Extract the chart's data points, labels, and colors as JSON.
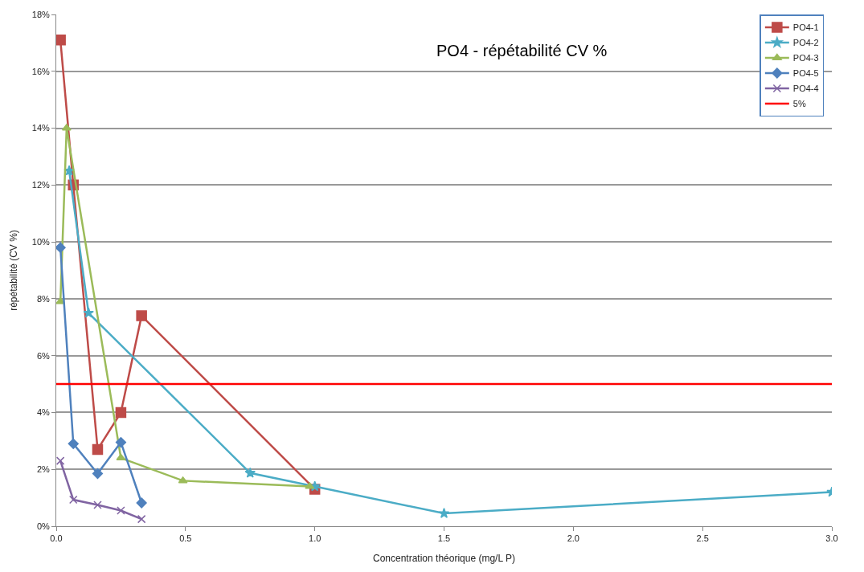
{
  "chart_data": {
    "type": "line",
    "title": "PO4 - répétabilité CV %",
    "xlabel": "Concentration théorique (mg/L P)",
    "ylabel": "répétabilité (CV %)",
    "xlim": [
      0,
      3
    ],
    "xticks": [
      {
        "value": 0,
        "label": "0.0"
      },
      0.5,
      {
        "value": 1,
        "label": "1.0"
      },
      1.5,
      {
        "value": 2,
        "label": "2.0"
      },
      2.5,
      {
        "value": 3,
        "label": "3.0"
      }
    ],
    "ylim": [
      0,
      18
    ],
    "yticks": [
      {
        "value": 0,
        "label": "0%"
      },
      {
        "value": 2,
        "label": "2%"
      },
      {
        "value": 4,
        "label": "4%"
      },
      {
        "value": 6,
        "label": "6%"
      },
      {
        "value": 8,
        "label": "8%"
      },
      {
        "value": 10,
        "label": "10%"
      },
      {
        "value": 12,
        "label": "12%"
      },
      {
        "value": 14,
        "label": "14%"
      },
      {
        "value": 16,
        "label": "16%"
      },
      {
        "value": 18,
        "label": "18%"
      }
    ],
    "grid": "y",
    "legend": "top right",
    "series": [
      {
        "name": "PO4-1",
        "color": "#be4b48",
        "marker": "square",
        "x": [
          0.016,
          0.066,
          0.16,
          0.25,
          0.33,
          1.0
        ],
        "values": [
          17.1,
          12.0,
          2.7,
          4.0,
          7.4,
          1.3
        ]
      },
      {
        "name": "PO4-2",
        "color": "#4bacc6",
        "marker": "star",
        "x": [
          0.05,
          0.125,
          0.75,
          1.0,
          1.5,
          3.0
        ],
        "values": [
          12.5,
          7.5,
          1.87,
          1.4,
          0.45,
          1.2
        ]
      },
      {
        "name": "PO4-3",
        "color": "#9bbb59",
        "marker": "triangle",
        "x": [
          0.016,
          0.04,
          0.25,
          0.49,
          0.98
        ],
        "values": [
          7.9,
          14.0,
          2.4,
          1.6,
          1.4
        ]
      },
      {
        "name": "PO4-5",
        "color": "#4f81bd",
        "marker": "diamond",
        "x": [
          0.016,
          0.066,
          0.16,
          0.25,
          0.33
        ],
        "values": [
          9.8,
          2.9,
          1.85,
          2.95,
          0.82
        ]
      },
      {
        "name": "PO4-4",
        "color": "#8064a2",
        "marker": "cross",
        "x": [
          0.016,
          0.066,
          0.16,
          0.25,
          0.33
        ],
        "values": [
          2.3,
          0.93,
          0.75,
          0.55,
          0.25
        ]
      }
    ],
    "ref_lines": [
      {
        "axis": "y",
        "value": 5,
        "label": "5%",
        "color": "#ff0000"
      }
    ]
  }
}
